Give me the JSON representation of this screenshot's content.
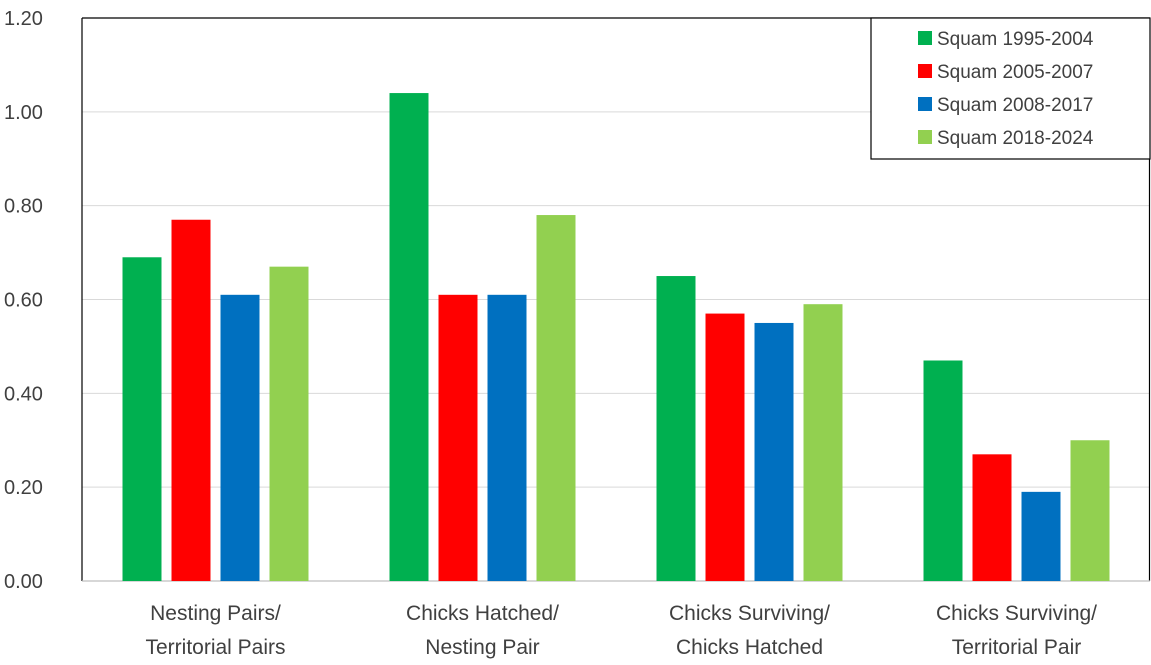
{
  "chart_data": {
    "type": "bar",
    "title": "",
    "xlabel": "",
    "ylabel": "",
    "categories": [
      [
        "Nesting Pairs/",
        "Territorial Pairs"
      ],
      [
        "Chicks Hatched/",
        "Nesting Pair"
      ],
      [
        "Chicks Surviving/",
        "Chicks Hatched"
      ],
      [
        "Chicks Surviving/",
        "Territorial Pair"
      ]
    ],
    "series": [
      {
        "name": "Squam 1995-2004",
        "color": "#00b050",
        "values": [
          0.69,
          1.04,
          0.65,
          0.47
        ]
      },
      {
        "name": "Squam 2005-2007",
        "color": "#ff0000",
        "values": [
          0.77,
          0.61,
          0.57,
          0.27
        ]
      },
      {
        "name": "Squam 2008-2017",
        "color": "#0070c0",
        "values": [
          0.61,
          0.61,
          0.55,
          0.19
        ]
      },
      {
        "name": "Squam 2018-2024",
        "color": "#92d050",
        "values": [
          0.67,
          0.78,
          0.59,
          0.3
        ]
      }
    ],
    "ylim": [
      0,
      1.2
    ],
    "yticks": [
      "0.00",
      "0.20",
      "0.40",
      "0.60",
      "0.80",
      "1.00",
      "1.20"
    ],
    "grid": true,
    "legend_position": "top-right"
  }
}
